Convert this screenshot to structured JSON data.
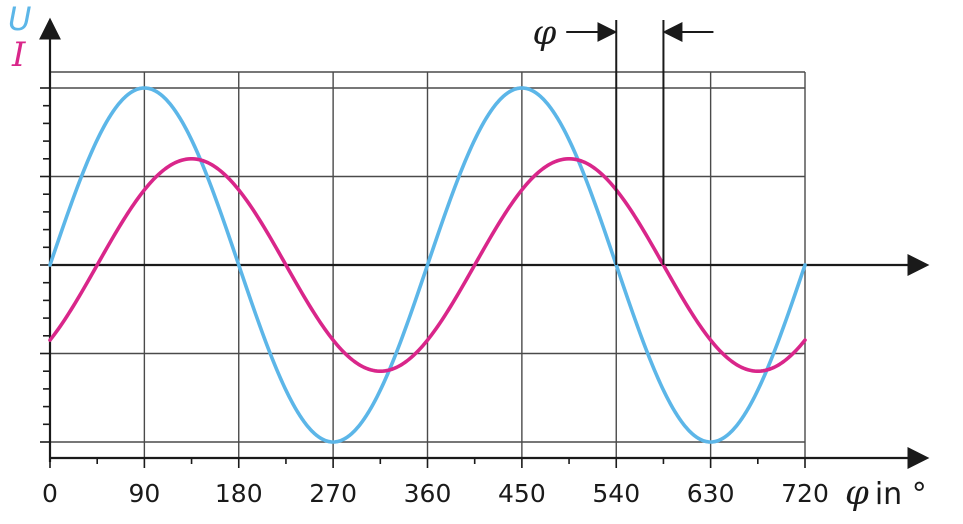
{
  "chart_data": {
    "type": "line",
    "x_unit": "°",
    "xlim": [
      0,
      720
    ],
    "x_ticks": [
      0,
      90,
      180,
      270,
      360,
      450,
      540,
      630,
      720
    ],
    "x_tick_labels": [
      "0",
      "90",
      "180",
      "270",
      "360",
      "450",
      "540",
      "630",
      "720"
    ],
    "xlabel_symbol": "φ",
    "xlabel_suffix": "in °",
    "ylim": [
      -1.0,
      1.0
    ],
    "grid": true,
    "series": [
      {
        "name": "U",
        "color": "#5cb6e8",
        "amplitude": 1.0,
        "phase_offset_deg": 0,
        "x": [
          0,
          45,
          90,
          135,
          180,
          225,
          270,
          315,
          360,
          405,
          450,
          495,
          540,
          585,
          630,
          675,
          720
        ],
        "values": [
          0,
          0.707,
          1.0,
          0.707,
          0,
          -0.707,
          -1.0,
          -0.707,
          0,
          0.707,
          1.0,
          0.707,
          0,
          -0.707,
          -1.0,
          -0.707,
          0
        ]
      },
      {
        "name": "I",
        "color": "#d9268a",
        "amplitude": 0.6,
        "phase_offset_deg": 45,
        "x": [
          0,
          45,
          90,
          135,
          180,
          225,
          270,
          315,
          360,
          405,
          450,
          495,
          540,
          585,
          630,
          675,
          720
        ],
        "values": [
          -0.424,
          0,
          0.424,
          0.6,
          0.424,
          0,
          -0.424,
          -0.6,
          -0.424,
          0,
          0.424,
          0.6,
          0.424,
          0,
          -0.424,
          -0.6,
          -0.424
        ]
      }
    ],
    "phase_marker": {
      "label": "φ",
      "from_deg": 540,
      "to_deg": 585
    }
  }
}
